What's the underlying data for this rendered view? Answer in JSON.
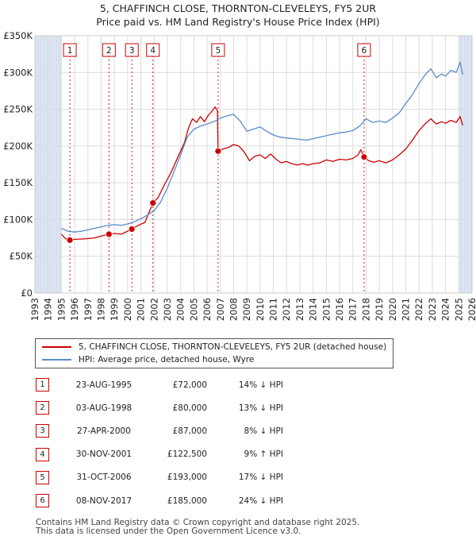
{
  "title_line1": "5, CHAFFINCH CLOSE, THORNTON-CLEVELEYS, FY5 2UR",
  "title_line2": "Price paid vs. HM Land Registry's House Price Index (HPI)",
  "colors": {
    "property": "#cc0000",
    "hpi": "#5b8bc9",
    "shade": "#dde5f3",
    "grid": "#dcdcdc",
    "marker_border": "#cc0000"
  },
  "chart_data": {
    "type": "line",
    "y_ticks": [
      "£0",
      "£50K",
      "£100K",
      "£150K",
      "£200K",
      "£250K",
      "£300K",
      "£350K"
    ],
    "ylim": [
      0,
      350000
    ],
    "xlim": [
      1993,
      2026
    ],
    "x_ticks": [
      "1993",
      "1994",
      "1995",
      "1996",
      "1997",
      "1998",
      "1999",
      "2000",
      "2001",
      "2002",
      "2003",
      "2004",
      "2005",
      "2006",
      "2007",
      "2008",
      "2009",
      "2010",
      "2011",
      "2012",
      "2013",
      "2014",
      "2015",
      "2016",
      "2017",
      "2018",
      "2019",
      "2020",
      "2021",
      "2022",
      "2023",
      "2024",
      "2025",
      "2026"
    ],
    "shaded_ranges": [
      [
        1993,
        1995.0
      ],
      [
        2025.0,
        2026
      ]
    ],
    "sales": [
      {
        "label": "1",
        "x": 1995.64,
        "y": 72000
      },
      {
        "label": "2",
        "x": 1998.59,
        "y": 80000
      },
      {
        "label": "3",
        "x": 2000.32,
        "y": 87000
      },
      {
        "label": "4",
        "x": 2001.91,
        "y": 122500
      },
      {
        "label": "5",
        "x": 2006.83,
        "y": 193000
      },
      {
        "label": "6",
        "x": 2017.85,
        "y": 185000
      }
    ],
    "series": [
      {
        "name": "5, CHAFFINCH CLOSE, THORNTON-CLEVELEYS, FY5 2UR (detached house)",
        "points": [
          [
            1995.0,
            80000
          ],
          [
            1995.3,
            74000
          ],
          [
            1995.64,
            72000
          ],
          [
            1996.0,
            73000
          ],
          [
            1996.5,
            73500
          ],
          [
            1997.0,
            74000
          ],
          [
            1997.5,
            75000
          ],
          [
            1998.0,
            77500
          ],
          [
            1998.59,
            80000
          ],
          [
            1999.0,
            81000
          ],
          [
            1999.5,
            80000
          ],
          [
            2000.0,
            84000
          ],
          [
            2000.32,
            87000
          ],
          [
            2000.8,
            92000
          ],
          [
            2001.3,
            96000
          ],
          [
            2001.91,
            122500
          ],
          [
            2002.3,
            130000
          ],
          [
            2002.8,
            148000
          ],
          [
            2003.3,
            165000
          ],
          [
            2003.8,
            185000
          ],
          [
            2004.3,
            205000
          ],
          [
            2004.6,
            225000
          ],
          [
            2004.9,
            237000
          ],
          [
            2005.2,
            232000
          ],
          [
            2005.5,
            240000
          ],
          [
            2005.8,
            233000
          ],
          [
            2006.1,
            242000
          ],
          [
            2006.4,
            248000
          ],
          [
            2006.6,
            253000
          ],
          [
            2006.78,
            248000
          ],
          [
            2006.83,
            193000
          ],
          [
            2007.2,
            196000
          ],
          [
            2007.6,
            198000
          ],
          [
            2008.0,
            202000
          ],
          [
            2008.4,
            200000
          ],
          [
            2008.8,
            192000
          ],
          [
            2009.2,
            180000
          ],
          [
            2009.6,
            186000
          ],
          [
            2010.0,
            188000
          ],
          [
            2010.4,
            183000
          ],
          [
            2010.8,
            189000
          ],
          [
            2011.2,
            182000
          ],
          [
            2011.6,
            177000
          ],
          [
            2012.0,
            179000
          ],
          [
            2012.4,
            176000
          ],
          [
            2012.8,
            174000
          ],
          [
            2013.2,
            176000
          ],
          [
            2013.6,
            174000
          ],
          [
            2014.0,
            176000
          ],
          [
            2014.5,
            177000
          ],
          [
            2015.0,
            181000
          ],
          [
            2015.5,
            179000
          ],
          [
            2016.0,
            182000
          ],
          [
            2016.5,
            181000
          ],
          [
            2017.0,
            183000
          ],
          [
            2017.4,
            188000
          ],
          [
            2017.6,
            195000
          ],
          [
            2017.85,
            185000
          ],
          [
            2018.2,
            180000
          ],
          [
            2018.6,
            178000
          ],
          [
            2019.0,
            180000
          ],
          [
            2019.5,
            177000
          ],
          [
            2020.0,
            181000
          ],
          [
            2020.5,
            188000
          ],
          [
            2021.0,
            196000
          ],
          [
            2021.5,
            208000
          ],
          [
            2022.0,
            221000
          ],
          [
            2022.5,
            231000
          ],
          [
            2022.9,
            237000
          ],
          [
            2023.3,
            230000
          ],
          [
            2023.7,
            233000
          ],
          [
            2024.0,
            231000
          ],
          [
            2024.4,
            235000
          ],
          [
            2024.8,
            232000
          ],
          [
            2025.1,
            240000
          ],
          [
            2025.3,
            228000
          ]
        ]
      },
      {
        "name": "HPI: Average price, detached house, Wyre",
        "points": [
          [
            1995.0,
            88000
          ],
          [
            1995.5,
            84000
          ],
          [
            1996.0,
            83000
          ],
          [
            1996.5,
            84000
          ],
          [
            1997.0,
            86000
          ],
          [
            1997.5,
            88000
          ],
          [
            1998.0,
            90000
          ],
          [
            1998.5,
            92000
          ],
          [
            1999.0,
            93000
          ],
          [
            1999.5,
            92000
          ],
          [
            2000.0,
            94000
          ],
          [
            2000.5,
            97000
          ],
          [
            2001.0,
            101000
          ],
          [
            2001.5,
            106000
          ],
          [
            2002.0,
            112000
          ],
          [
            2002.5,
            124000
          ],
          [
            2003.0,
            143000
          ],
          [
            2003.5,
            165000
          ],
          [
            2004.0,
            188000
          ],
          [
            2004.5,
            212000
          ],
          [
            2005.0,
            223000
          ],
          [
            2005.5,
            227000
          ],
          [
            2006.0,
            230000
          ],
          [
            2006.5,
            233000
          ],
          [
            2007.0,
            238000
          ],
          [
            2007.5,
            241000
          ],
          [
            2008.0,
            243000
          ],
          [
            2008.5,
            234000
          ],
          [
            2009.0,
            220000
          ],
          [
            2009.5,
            223000
          ],
          [
            2010.0,
            226000
          ],
          [
            2010.5,
            220000
          ],
          [
            2011.0,
            215000
          ],
          [
            2011.5,
            212000
          ],
          [
            2012.0,
            211000
          ],
          [
            2012.5,
            210000
          ],
          [
            2013.0,
            209000
          ],
          [
            2013.5,
            208000
          ],
          [
            2014.0,
            210000
          ],
          [
            2014.5,
            212000
          ],
          [
            2015.0,
            214000
          ],
          [
            2015.5,
            216000
          ],
          [
            2016.0,
            218000
          ],
          [
            2016.5,
            219000
          ],
          [
            2017.0,
            221000
          ],
          [
            2017.5,
            227000
          ],
          [
            2018.0,
            237000
          ],
          [
            2018.5,
            232000
          ],
          [
            2019.0,
            234000
          ],
          [
            2019.5,
            232000
          ],
          [
            2020.0,
            238000
          ],
          [
            2020.5,
            245000
          ],
          [
            2021.0,
            258000
          ],
          [
            2021.5,
            270000
          ],
          [
            2022.0,
            285000
          ],
          [
            2022.5,
            298000
          ],
          [
            2022.9,
            305000
          ],
          [
            2023.3,
            293000
          ],
          [
            2023.7,
            298000
          ],
          [
            2024.0,
            295000
          ],
          [
            2024.4,
            303000
          ],
          [
            2024.8,
            300000
          ],
          [
            2025.1,
            314000
          ],
          [
            2025.3,
            297000
          ]
        ]
      }
    ]
  },
  "legend": {
    "property_label": "5, CHAFFINCH CLOSE, THORNTON-CLEVELEYS, FY5 2UR (detached house)",
    "hpi_label": "HPI: Average price, detached house, Wyre"
  },
  "sales_table": [
    {
      "num": "1",
      "date": "23-AUG-1995",
      "price": "£72,000",
      "hpi": "14% ↓ HPI"
    },
    {
      "num": "2",
      "date": "03-AUG-1998",
      "price": "£80,000",
      "hpi": "13% ↓ HPI"
    },
    {
      "num": "3",
      "date": "27-APR-2000",
      "price": "£87,000",
      "hpi": "8% ↓ HPI"
    },
    {
      "num": "4",
      "date": "30-NOV-2001",
      "price": "£122,500",
      "hpi": "9% ↑ HPI"
    },
    {
      "num": "5",
      "date": "31-OCT-2006",
      "price": "£193,000",
      "hpi": "17% ↓ HPI"
    },
    {
      "num": "6",
      "date": "08-NOV-2017",
      "price": "£185,000",
      "hpi": "24% ↓ HPI"
    }
  ],
  "footer_line1": "Contains HM Land Registry data © Crown copyright and database right 2025.",
  "footer_line2": "This data is licensed under the Open Government Licence v3.0."
}
